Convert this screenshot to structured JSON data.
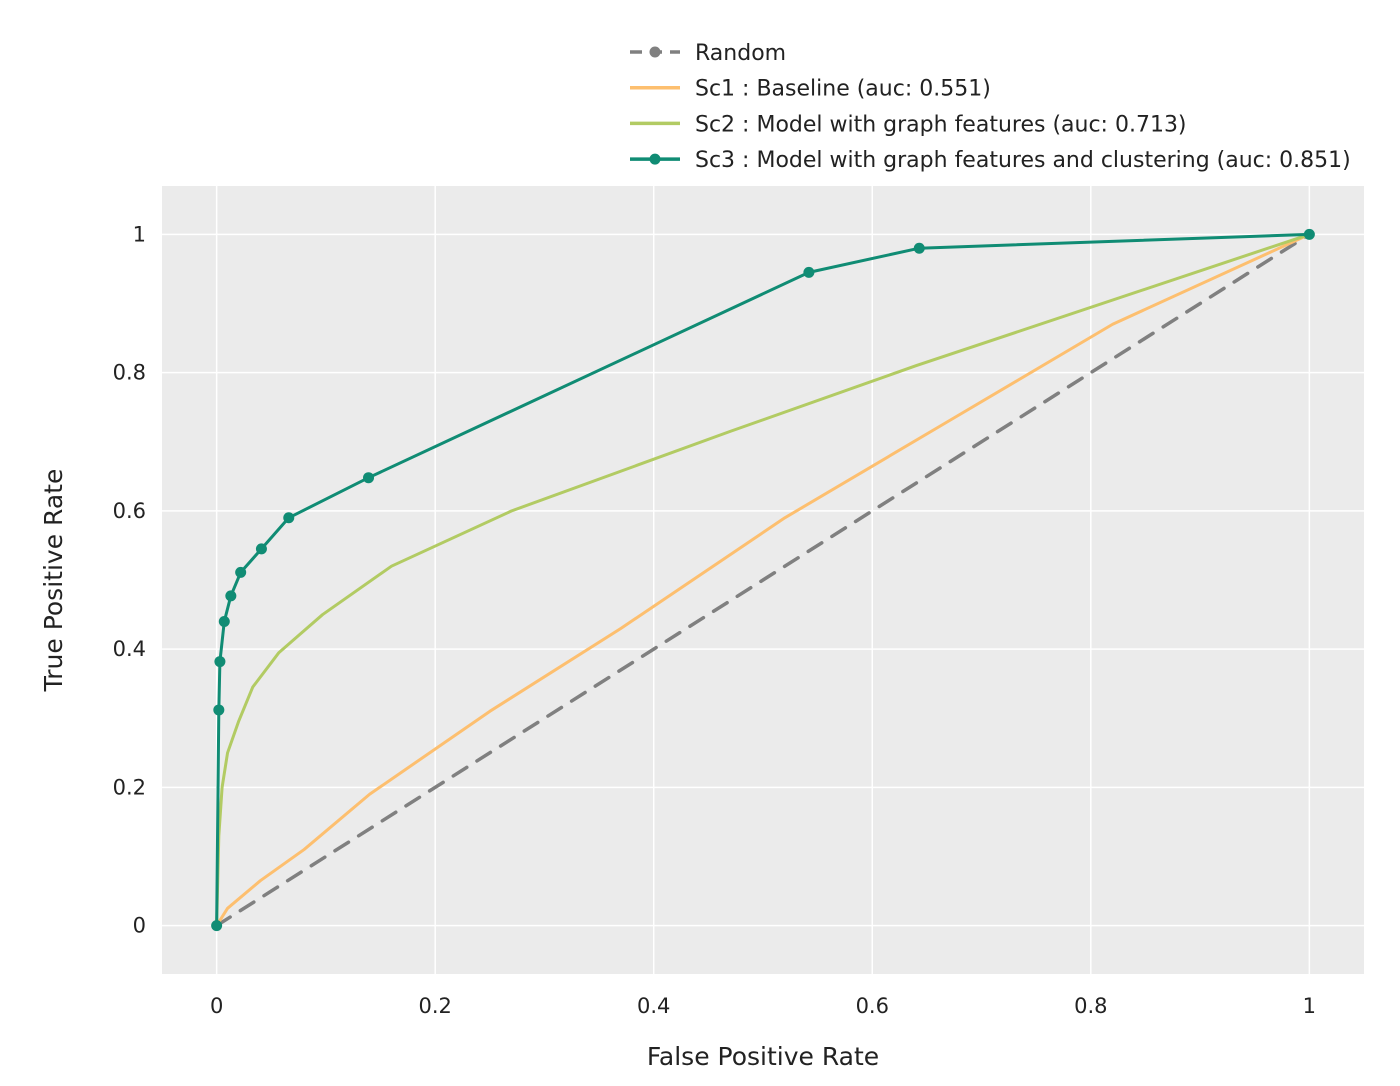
{
  "chart_data": {
    "type": "line",
    "title": "",
    "xlabel": "False Positive Rate",
    "ylabel": "True Positive Rate",
    "xlim": [
      -0.05,
      1.05
    ],
    "ylim": [
      -0.07,
      1.07
    ],
    "x_ticks": [
      0,
      0.2,
      0.4,
      0.6,
      0.8,
      1
    ],
    "x_tick_labels": [
      "0",
      "0.2",
      "0.4",
      "0.6",
      "0.8",
      "1"
    ],
    "y_ticks": [
      0,
      0.2,
      0.4,
      0.6,
      0.8,
      1
    ],
    "y_tick_labels": [
      "0",
      "0.2",
      "0.4",
      "0.6",
      "0.8",
      "1"
    ],
    "grid": true,
    "legend_position": "top",
    "background_color": "#ebebeb",
    "series": [
      {
        "name": "Random",
        "color": "#808080",
        "style": "dashed",
        "markers": false,
        "x": [
          0,
          1
        ],
        "y": [
          0,
          1
        ]
      },
      {
        "name": "Sc1 : Baseline (auc: 0.551)",
        "color": "#fdbf6f",
        "style": "solid",
        "markers": false,
        "x": [
          0,
          0.01,
          0.04,
          0.08,
          0.14,
          0.25,
          0.37,
          0.52,
          0.67,
          0.82,
          1
        ],
        "y": [
          0,
          0.025,
          0.065,
          0.11,
          0.19,
          0.31,
          0.43,
          0.59,
          0.73,
          0.87,
          1
        ]
      },
      {
        "name": "Sc2 : Model with graph features (auc: 0.713)",
        "color": "#b2cb63",
        "style": "solid",
        "markers": false,
        "x": [
          0,
          0.002,
          0.005,
          0.01,
          0.02,
          0.033,
          0.057,
          0.097,
          0.16,
          0.27,
          0.47,
          0.64,
          1
        ],
        "y": [
          0,
          0.13,
          0.2,
          0.25,
          0.295,
          0.345,
          0.395,
          0.45,
          0.52,
          0.6,
          0.715,
          0.81,
          1
        ]
      },
      {
        "name": "Sc3 : Model with graph features and clustering (auc: 0.851)",
        "color": "#108c74",
        "style": "solid",
        "markers": true,
        "x": [
          0,
          0.002,
          0.003,
          0.007,
          0.013,
          0.022,
          0.041,
          0.066,
          0.139,
          0.542,
          0.643,
          1
        ],
        "y": [
          0,
          0.312,
          0.382,
          0.44,
          0.477,
          0.511,
          0.545,
          0.59,
          0.648,
          0.945,
          0.98,
          1
        ]
      }
    ]
  }
}
